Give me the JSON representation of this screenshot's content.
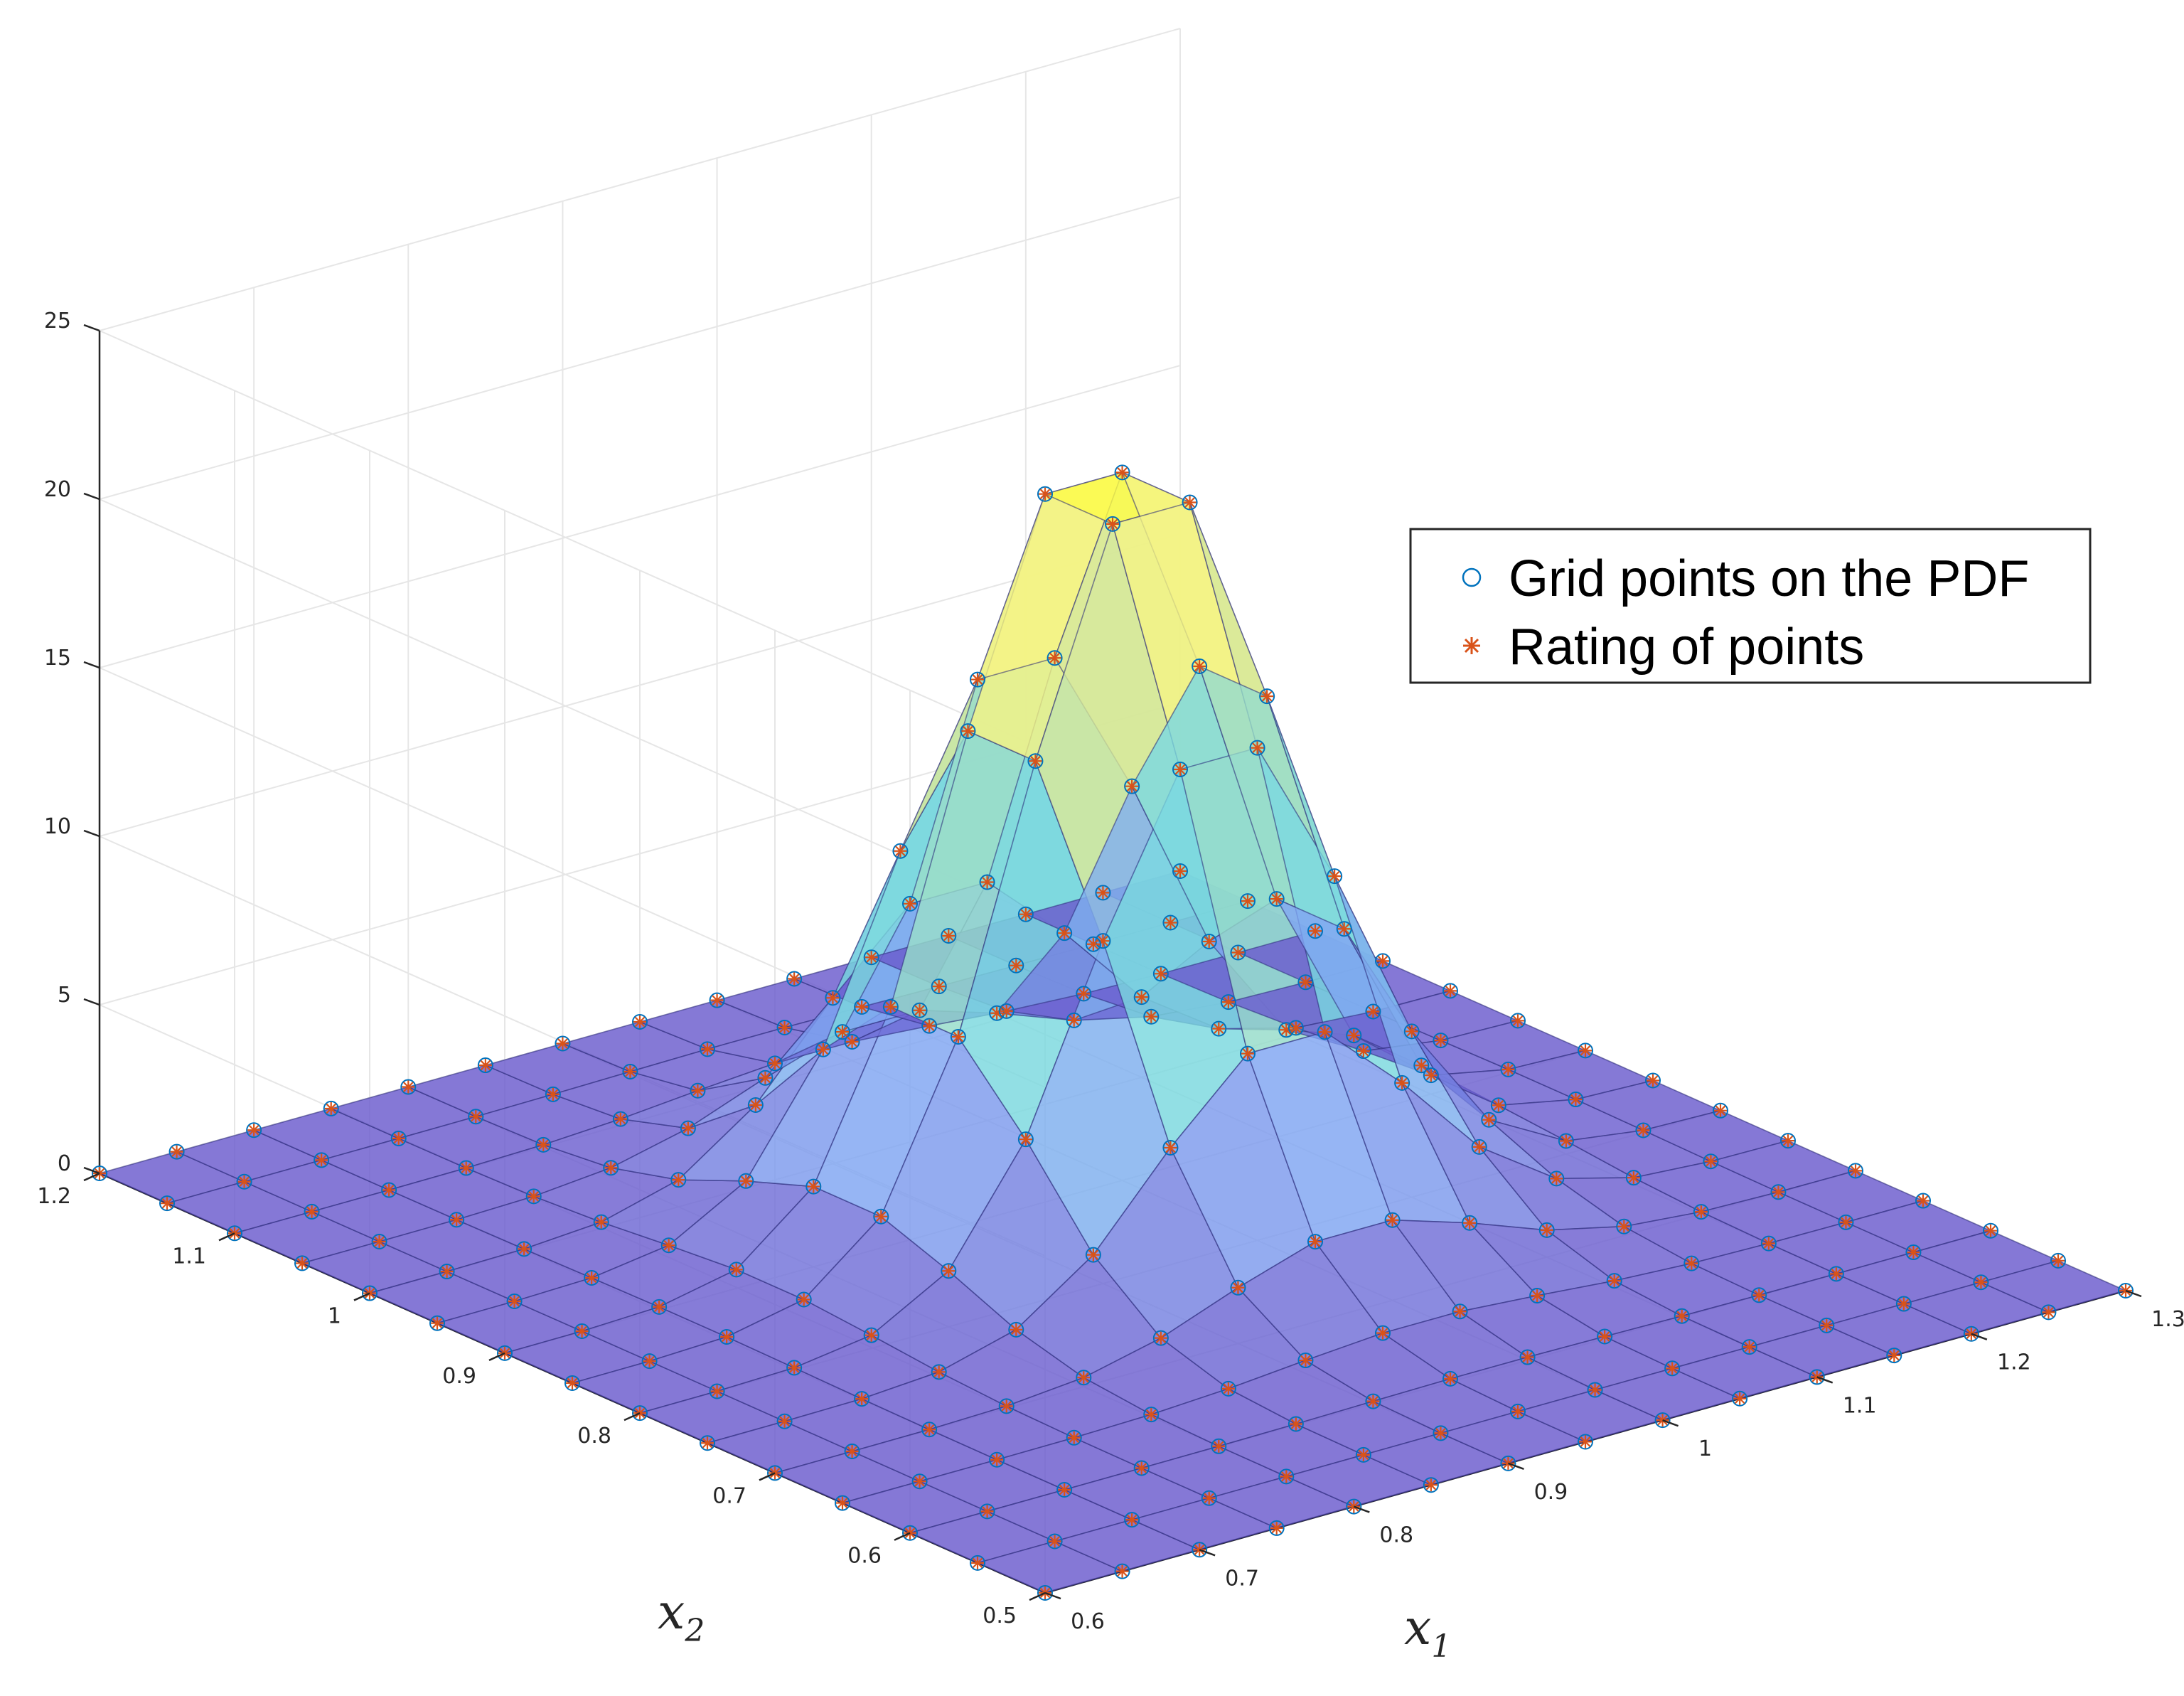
{
  "chart_data": {
    "type": "surface3d",
    "title": "",
    "xlabel": "x",
    "xlabel_sub": "1",
    "ylabel": "x",
    "ylabel_sub": "2",
    "zlabel": "",
    "xlim": [
      0.6,
      1.3
    ],
    "ylim": [
      0.5,
      1.2
    ],
    "zlim": [
      0,
      25
    ],
    "x_ticks": [
      0.6,
      0.7,
      0.8,
      0.9,
      1,
      1.1,
      1.2,
      1.3
    ],
    "x_tick_labels": [
      "0.6",
      "0.7",
      "0.8",
      "0.9",
      "1",
      "1.1",
      "1.2",
      "1.3"
    ],
    "y_ticks": [
      0.5,
      0.6,
      0.7,
      0.8,
      0.9,
      1,
      1.1,
      1.2
    ],
    "y_tick_labels": [
      "0.5",
      "0.6",
      "0.7",
      "0.8",
      "0.9",
      "1",
      "1.1",
      "1.2"
    ],
    "z_ticks": [
      0,
      5,
      10,
      15,
      20,
      25
    ],
    "z_tick_labels": [
      "0",
      "5",
      "10",
      "15",
      "20",
      "25"
    ],
    "grid": true,
    "legend": {
      "location": "top-right",
      "entries": [
        {
          "label": "Grid points on the PDF",
          "marker": "circle",
          "color": "#0072BD"
        },
        {
          "label": "Rating of points",
          "marker": "asterisk",
          "color": "#D95319"
        }
      ]
    },
    "surface": {
      "function": "bivariate-normal-pdf",
      "x_range": [
        0.6,
        1.3
      ],
      "y_range": [
        0.5,
        1.2
      ],
      "grid_size": 15,
      "mean": [
        0.975,
        0.875
      ],
      "sigma": [
        0.083,
        0.083
      ],
      "peak": 23,
      "colormap": [
        "#6a5acd",
        "#7fa4f2",
        "#7ad8de",
        "#c6e3a4",
        "#faf57e",
        "#ffff19"
      ]
    }
  }
}
